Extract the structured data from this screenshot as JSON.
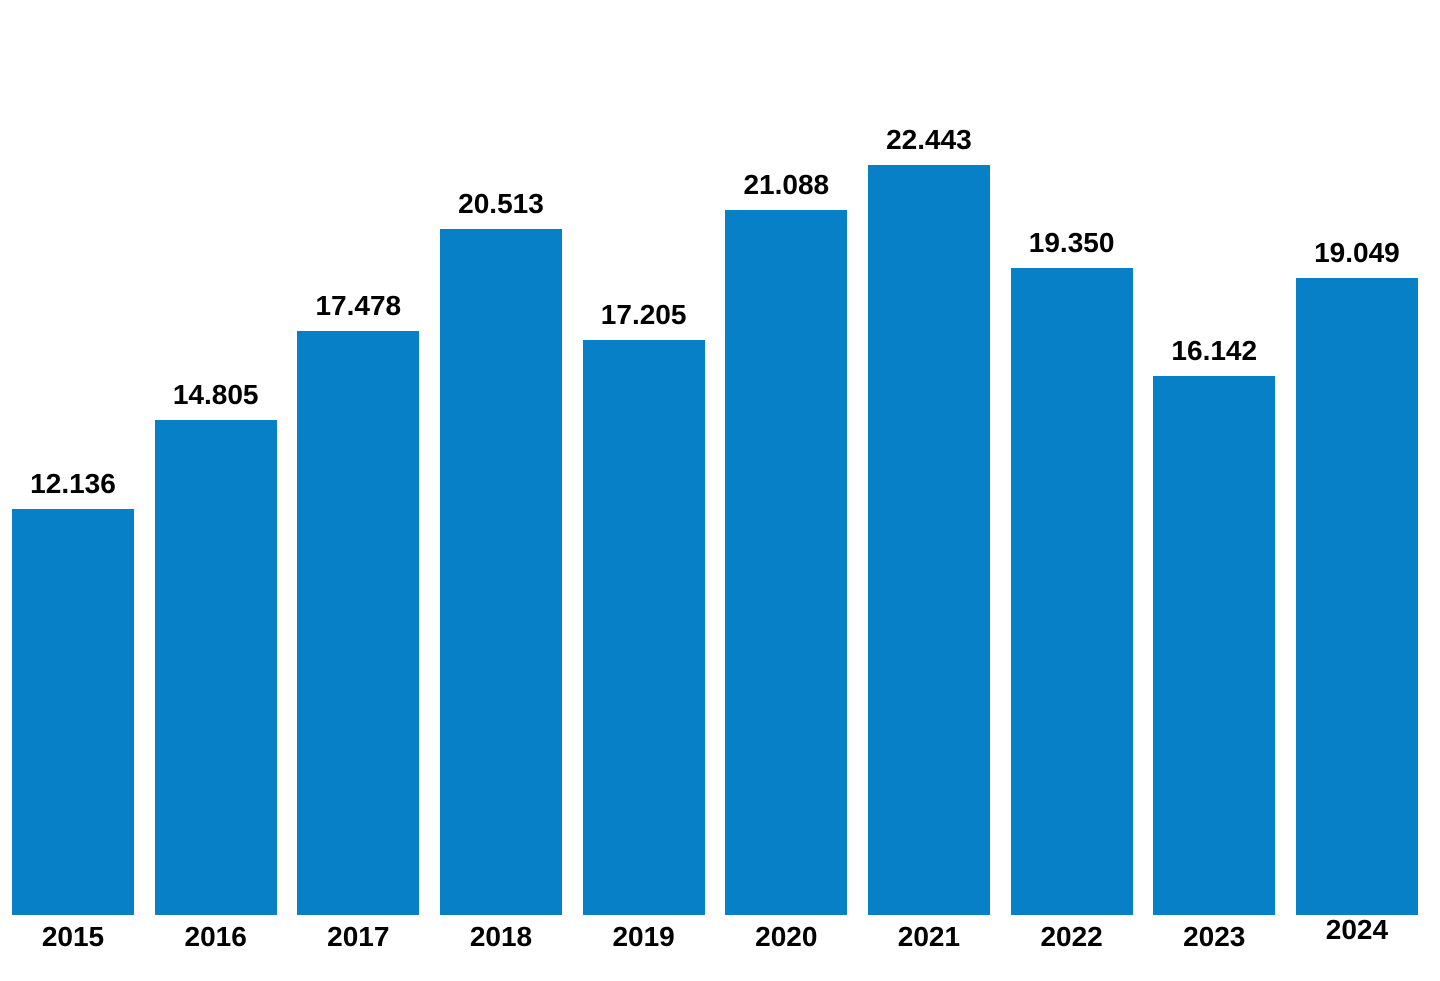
{
  "chart_data": {
    "type": "bar",
    "categories": [
      "2015",
      "2016",
      "2017",
      "2018",
      "2019",
      "2020",
      "2021",
      "2022",
      "2023",
      "2024"
    ],
    "values": [
      12136,
      14805,
      17478,
      20513,
      17205,
      21088,
      22443,
      19350,
      16142,
      19049
    ],
    "value_labels": [
      "12.136",
      "14.805",
      "17.478",
      "20.513",
      "17.205",
      "21.088",
      "22.443",
      "19.350",
      "16.142",
      "19.049"
    ],
    "number_format": "thousands-dot",
    "value_label_position": "above-bar",
    "bar_color": "#0780c8",
    "value_label_color": "#000000",
    "category_label_color": "#000000",
    "background_color": "#ffffff",
    "grid": false,
    "axes_visible": false,
    "legend_position": "none",
    "ylim": [
      0,
      22443
    ]
  }
}
